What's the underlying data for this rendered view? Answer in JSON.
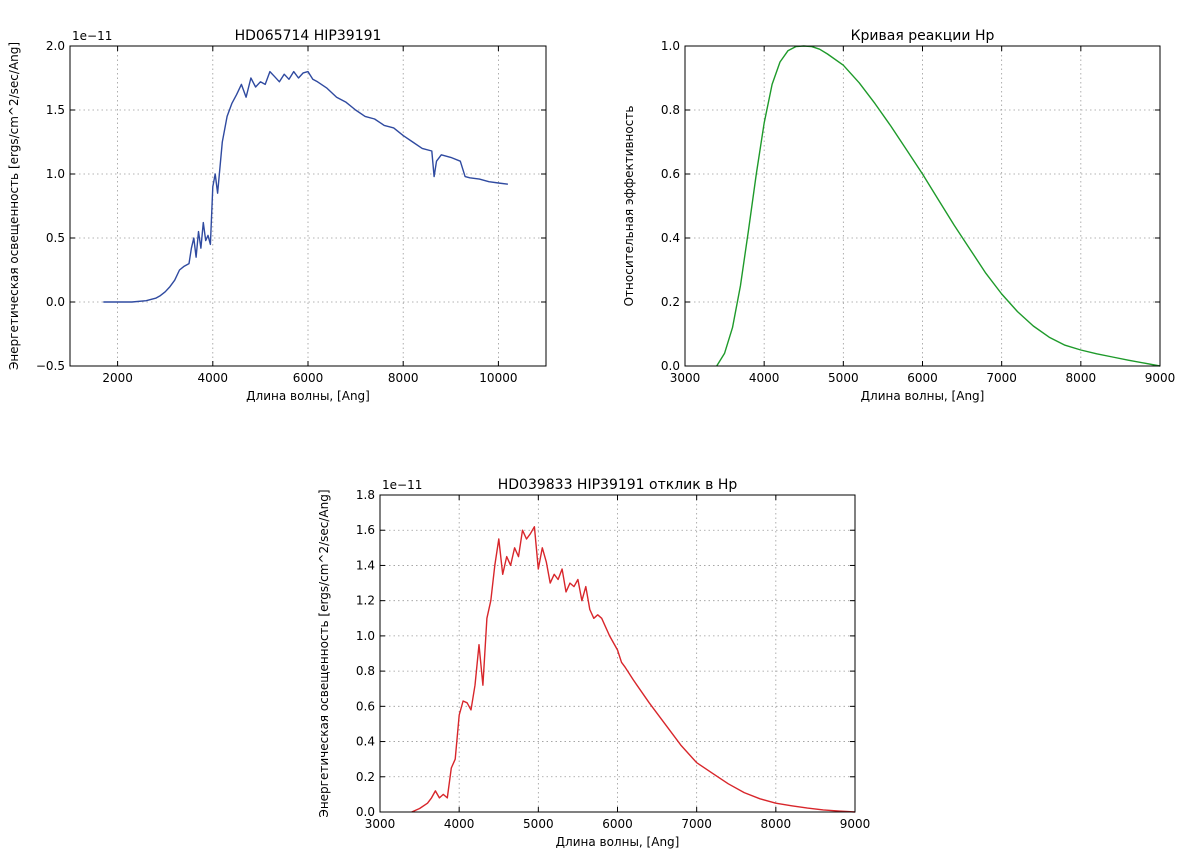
{
  "chart_data": [
    {
      "type": "line",
      "title": "HD065714 HIP39191",
      "xlabel": "Длина волны, [Ang]",
      "ylabel": "Энергетическая освещенность [ergs/cm^2/sec/Ang]",
      "y_offset_label": "1e−11",
      "xlim": [
        1000,
        11000
      ],
      "ylim": [
        -0.5,
        2.0
      ],
      "xticks": [
        2000,
        4000,
        6000,
        8000,
        10000
      ],
      "yticks": [
        -0.5,
        0.0,
        0.5,
        1.0,
        1.5,
        2.0
      ],
      "ytick_labels": [
        "−0.5",
        "0.0",
        "0.5",
        "1.0",
        "1.5",
        "2.0"
      ],
      "grid": true,
      "color": "#2f4aa0",
      "x": [
        1700,
        2000,
        2300,
        2600,
        2700,
        2800,
        2900,
        3000,
        3100,
        3200,
        3300,
        3400,
        3500,
        3550,
        3600,
        3650,
        3700,
        3750,
        3800,
        3850,
        3900,
        3950,
        4000,
        4050,
        4100,
        4200,
        4300,
        4400,
        4500,
        4600,
        4700,
        4800,
        4900,
        5000,
        5100,
        5200,
        5300,
        5400,
        5500,
        5600,
        5700,
        5800,
        5900,
        6000,
        6100,
        6200,
        6400,
        6600,
        6800,
        7000,
        7200,
        7400,
        7600,
        7800,
        8000,
        8200,
        8400,
        8600,
        8650,
        8700,
        8800,
        9000,
        9200,
        9300,
        9400,
        9600,
        9800,
        10000,
        10200
      ],
      "y": [
        0.0,
        0.0,
        0.0,
        0.01,
        0.02,
        0.03,
        0.05,
        0.08,
        0.12,
        0.17,
        0.25,
        0.28,
        0.3,
        0.42,
        0.5,
        0.35,
        0.55,
        0.42,
        0.62,
        0.48,
        0.52,
        0.45,
        0.9,
        1.0,
        0.85,
        1.25,
        1.45,
        1.55,
        1.62,
        1.7,
        1.6,
        1.75,
        1.68,
        1.72,
        1.7,
        1.8,
        1.76,
        1.72,
        1.78,
        1.74,
        1.8,
        1.75,
        1.79,
        1.8,
        1.74,
        1.72,
        1.67,
        1.6,
        1.56,
        1.5,
        1.45,
        1.43,
        1.38,
        1.36,
        1.3,
        1.25,
        1.2,
        1.18,
        0.98,
        1.1,
        1.15,
        1.13,
        1.1,
        0.98,
        0.97,
        0.96,
        0.94,
        0.93,
        0.92
      ]
    },
    {
      "type": "line",
      "title": "Кривая реакции Hp",
      "xlabel": "Длина волны, [Ang]",
      "ylabel": "Относительная эффективность",
      "xlim": [
        3000,
        9000
      ],
      "ylim": [
        0.0,
        1.0
      ],
      "xticks": [
        3000,
        4000,
        5000,
        6000,
        7000,
        8000,
        9000
      ],
      "yticks": [
        0.0,
        0.2,
        0.4,
        0.6,
        0.8,
        1.0
      ],
      "ytick_labels": [
        "0.0",
        "0.2",
        "0.4",
        "0.6",
        "0.8",
        "1.0"
      ],
      "grid": true,
      "color": "#1e9a2a",
      "x": [
        3400,
        3500,
        3600,
        3700,
        3800,
        3900,
        4000,
        4100,
        4200,
        4300,
        4400,
        4500,
        4600,
        4700,
        4800,
        5000,
        5200,
        5400,
        5600,
        5800,
        6000,
        6200,
        6400,
        6600,
        6800,
        7000,
        7200,
        7400,
        7600,
        7800,
        8000,
        8200,
        8400,
        8600,
        8800,
        9000
      ],
      "y": [
        0.0,
        0.04,
        0.12,
        0.25,
        0.42,
        0.6,
        0.76,
        0.88,
        0.95,
        0.985,
        0.998,
        1.0,
        0.998,
        0.99,
        0.975,
        0.94,
        0.885,
        0.82,
        0.75,
        0.675,
        0.6,
        0.52,
        0.44,
        0.365,
        0.29,
        0.225,
        0.17,
        0.125,
        0.09,
        0.065,
        0.05,
        0.038,
        0.028,
        0.018,
        0.009,
        0.0
      ]
    },
    {
      "type": "line",
      "title": "HD039833 HIP39191 отклик в Hp",
      "xlabel": "Длина волны, [Ang]",
      "ylabel": "Энергетическая освещенность [ergs/cm^2/sec/Ang]",
      "y_offset_label": "1e−11",
      "xlim": [
        3000,
        9000
      ],
      "ylim": [
        0.0,
        1.8
      ],
      "xticks": [
        3000,
        4000,
        5000,
        6000,
        7000,
        8000,
        9000
      ],
      "yticks": [
        0.0,
        0.2,
        0.4,
        0.6,
        0.8,
        1.0,
        1.2,
        1.4,
        1.6,
        1.8
      ],
      "ytick_labels": [
        "0.0",
        "0.2",
        "0.4",
        "0.6",
        "0.8",
        "1.0",
        "1.2",
        "1.4",
        "1.6",
        "1.8"
      ],
      "grid": true,
      "color": "#d8262b",
      "x": [
        3400,
        3500,
        3600,
        3650,
        3700,
        3750,
        3800,
        3850,
        3900,
        3950,
        4000,
        4050,
        4100,
        4150,
        4200,
        4250,
        4300,
        4350,
        4400,
        4450,
        4500,
        4550,
        4600,
        4650,
        4700,
        4750,
        4800,
        4850,
        4900,
        4950,
        5000,
        5050,
        5100,
        5150,
        5200,
        5250,
        5300,
        5350,
        5400,
        5450,
        5500,
        5550,
        5600,
        5650,
        5700,
        5750,
        5800,
        5900,
        6000,
        6050,
        6100,
        6200,
        6400,
        6600,
        6800,
        7000,
        7200,
        7400,
        7600,
        7800,
        8000,
        8200,
        8400,
        8600,
        8800,
        9000
      ],
      "y": [
        0.0,
        0.02,
        0.05,
        0.08,
        0.12,
        0.08,
        0.1,
        0.08,
        0.25,
        0.3,
        0.55,
        0.63,
        0.62,
        0.58,
        0.72,
        0.95,
        0.72,
        1.1,
        1.2,
        1.4,
        1.55,
        1.35,
        1.45,
        1.4,
        1.5,
        1.45,
        1.6,
        1.55,
        1.58,
        1.62,
        1.38,
        1.5,
        1.42,
        1.3,
        1.35,
        1.32,
        1.38,
        1.25,
        1.3,
        1.28,
        1.32,
        1.2,
        1.28,
        1.15,
        1.1,
        1.12,
        1.1,
        1.0,
        0.92,
        0.85,
        0.82,
        0.75,
        0.62,
        0.5,
        0.38,
        0.28,
        0.22,
        0.16,
        0.11,
        0.075,
        0.05,
        0.035,
        0.022,
        0.012,
        0.005,
        0.0
      ]
    }
  ]
}
